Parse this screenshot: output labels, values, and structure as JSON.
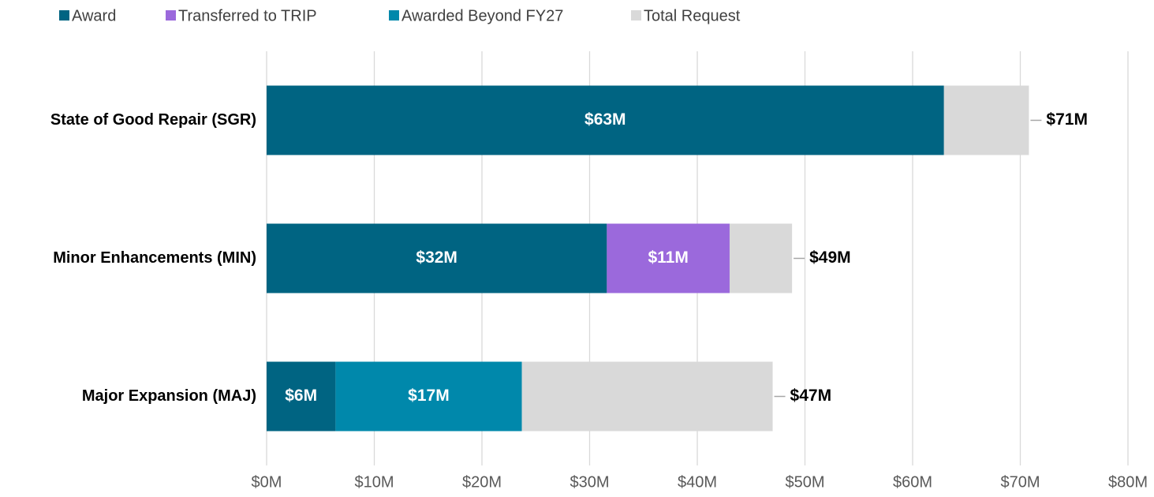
{
  "chart_data": {
    "type": "bar",
    "orientation": "horizontal",
    "categories": [
      "State of Good Repair (SGR)",
      "Minor Enhancements (MIN)",
      "Major Expansion (MAJ)"
    ],
    "series": [
      {
        "name": "Award",
        "color": "#006482",
        "values": [
          62.9,
          31.6,
          6.4
        ],
        "value_labels": [
          "$63M",
          "$32M",
          "$6M"
        ]
      },
      {
        "name": "Transferred to TRIP",
        "color": "#9b69dc",
        "values": [
          null,
          11.4,
          null
        ],
        "value_labels": [
          null,
          "$11M",
          null
        ]
      },
      {
        "name": "Awarded  Beyond FY27",
        "color": "#0088ab",
        "values": [
          null,
          null,
          17.3
        ],
        "value_labels": [
          null,
          null,
          "$17M"
        ]
      },
      {
        "name": "Total Request",
        "color": "#d9d9d9",
        "values": [
          70.8,
          48.8,
          47.0
        ],
        "value_labels": [
          "$71M",
          "$49M",
          "$47M"
        ]
      }
    ],
    "xlim": [
      0,
      80
    ],
    "xticks": [
      {
        "value": 0,
        "label": "$0M"
      },
      {
        "value": 10,
        "label": "$10M"
      },
      {
        "value": 20,
        "label": "$20M"
      },
      {
        "value": 30,
        "label": "$30M"
      },
      {
        "value": 40,
        "label": "$40M"
      },
      {
        "value": 50,
        "label": "$50M"
      },
      {
        "value": 60,
        "label": "$60M"
      },
      {
        "value": 70,
        "label": "$70M"
      },
      {
        "value": 80,
        "label": "$80M"
      }
    ],
    "grid": true,
    "legend": "top"
  }
}
